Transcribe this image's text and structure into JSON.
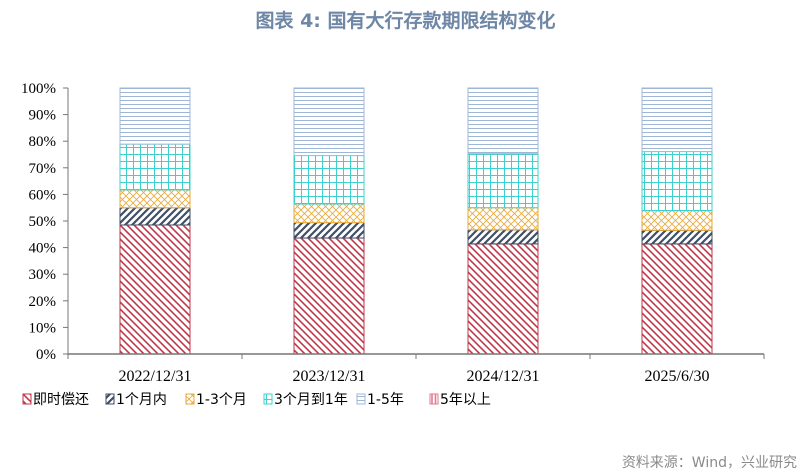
{
  "title": "图表 4:  国有大行存款期限结构变化",
  "source": "资料来源：Wind，兴业研究",
  "chart_data": {
    "type": "bar",
    "stacked": true,
    "title": "图表 4:  国有大行存款期限结构变化",
    "categories": [
      "2022/12/31",
      "2023/12/31",
      "2024/12/31",
      "2025/6/30"
    ],
    "series": [
      {
        "name": "即时偿还",
        "color": "#c0394b",
        "pattern": "diag-down",
        "values": [
          48.5,
          43.6,
          41.4,
          41.4
        ]
      },
      {
        "name": "1个月内",
        "color": "#3f4f66",
        "pattern": "diag-up",
        "values": [
          6.5,
          5.8,
          5.3,
          5.1
        ]
      },
      {
        "name": "1-3个月",
        "color": "#e8a93a",
        "pattern": "diamond",
        "values": [
          6.7,
          7.0,
          8.3,
          7.4
        ]
      },
      {
        "name": "3个月到1年",
        "color": "#3fd0cc",
        "pattern": "grid",
        "values": [
          17.2,
          18.2,
          20.3,
          22.2
        ]
      },
      {
        "name": "1-5年",
        "color": "#9fb6d4",
        "pattern": "horiz",
        "values": [
          21.1,
          25.4,
          24.7,
          23.9
        ]
      },
      {
        "name": "5年以上",
        "color": "#e07a93",
        "pattern": "vert",
        "values": [
          0,
          0,
          0,
          0
        ]
      }
    ],
    "ylim": [
      0,
      100
    ],
    "yticks": [
      "0%",
      "10%",
      "20%",
      "30%",
      "40%",
      "50%",
      "60%",
      "70%",
      "80%",
      "90%",
      "100%"
    ],
    "xlabel": "",
    "ylabel": "",
    "legend": "bottom"
  }
}
